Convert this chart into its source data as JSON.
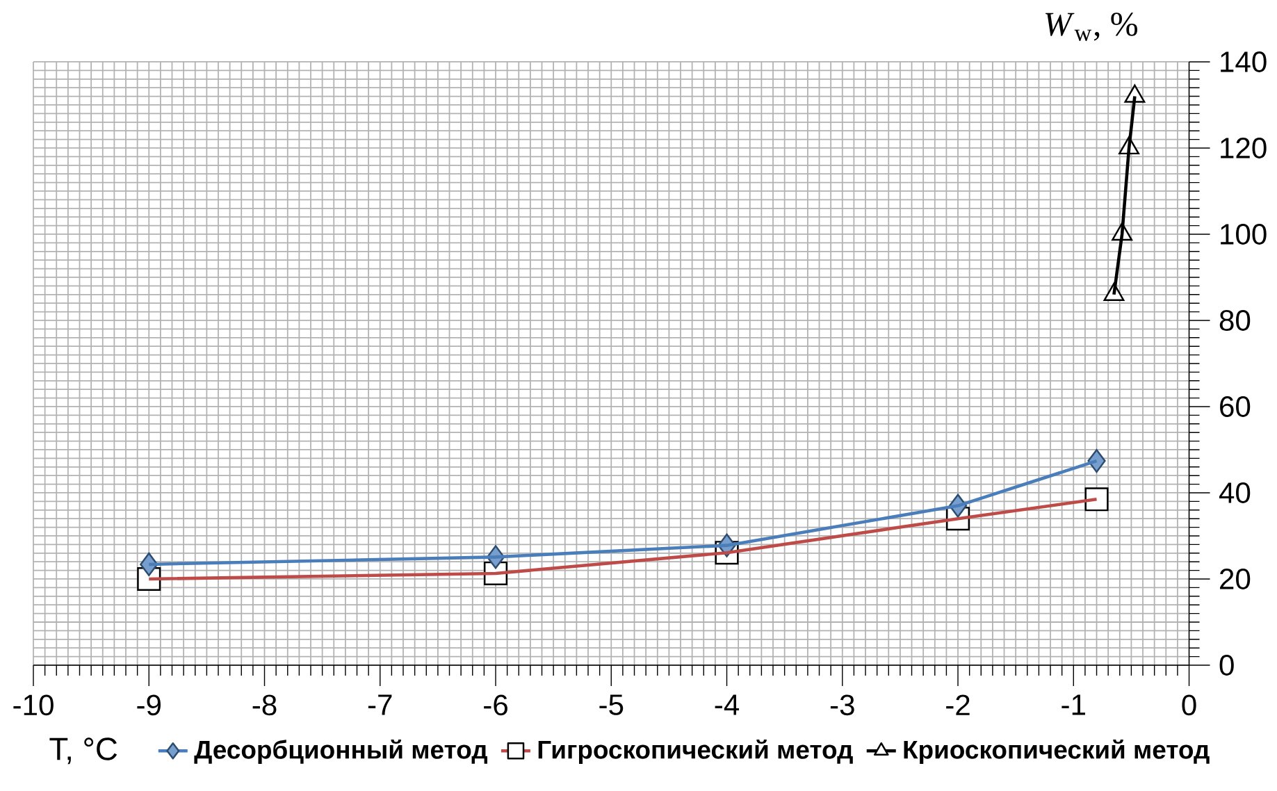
{
  "chart_data": {
    "type": "line",
    "xlabel": "T,  °C",
    "ylabel": "*W*$_{w}$, %",
    "xlim": [
      -10,
      0
    ],
    "ylim": [
      0,
      140
    ],
    "xticks": [
      -10,
      -9,
      -8,
      -7,
      -6,
      -5,
      -4,
      -3,
      -2,
      -1,
      0
    ],
    "yticks": [
      0,
      20,
      40,
      60,
      80,
      100,
      120,
      140
    ],
    "grid": true,
    "legend": "bottom",
    "series": [
      {
        "name": "Десорбционный метод",
        "color": "#4a7ebb",
        "marker": "diamond",
        "x": [
          -9,
          -6,
          -4,
          -2,
          -0.8
        ],
        "values": [
          23.4,
          25.1,
          27.8,
          37.0,
          47.4
        ]
      },
      {
        "name": "Гигроскопический метод",
        "color": "#be4b48",
        "marker": "square",
        "x": [
          -9,
          -6,
          -4,
          -2,
          -0.8
        ],
        "values": [
          20.0,
          21.3,
          26.1,
          34.0,
          38.5
        ]
      },
      {
        "name": "Криоскопический метод",
        "color": "#000000",
        "marker": "triangle",
        "x": [
          -0.65,
          -0.58,
          -0.52,
          -0.47
        ],
        "values": [
          86,
          100,
          120,
          132
        ]
      }
    ]
  }
}
